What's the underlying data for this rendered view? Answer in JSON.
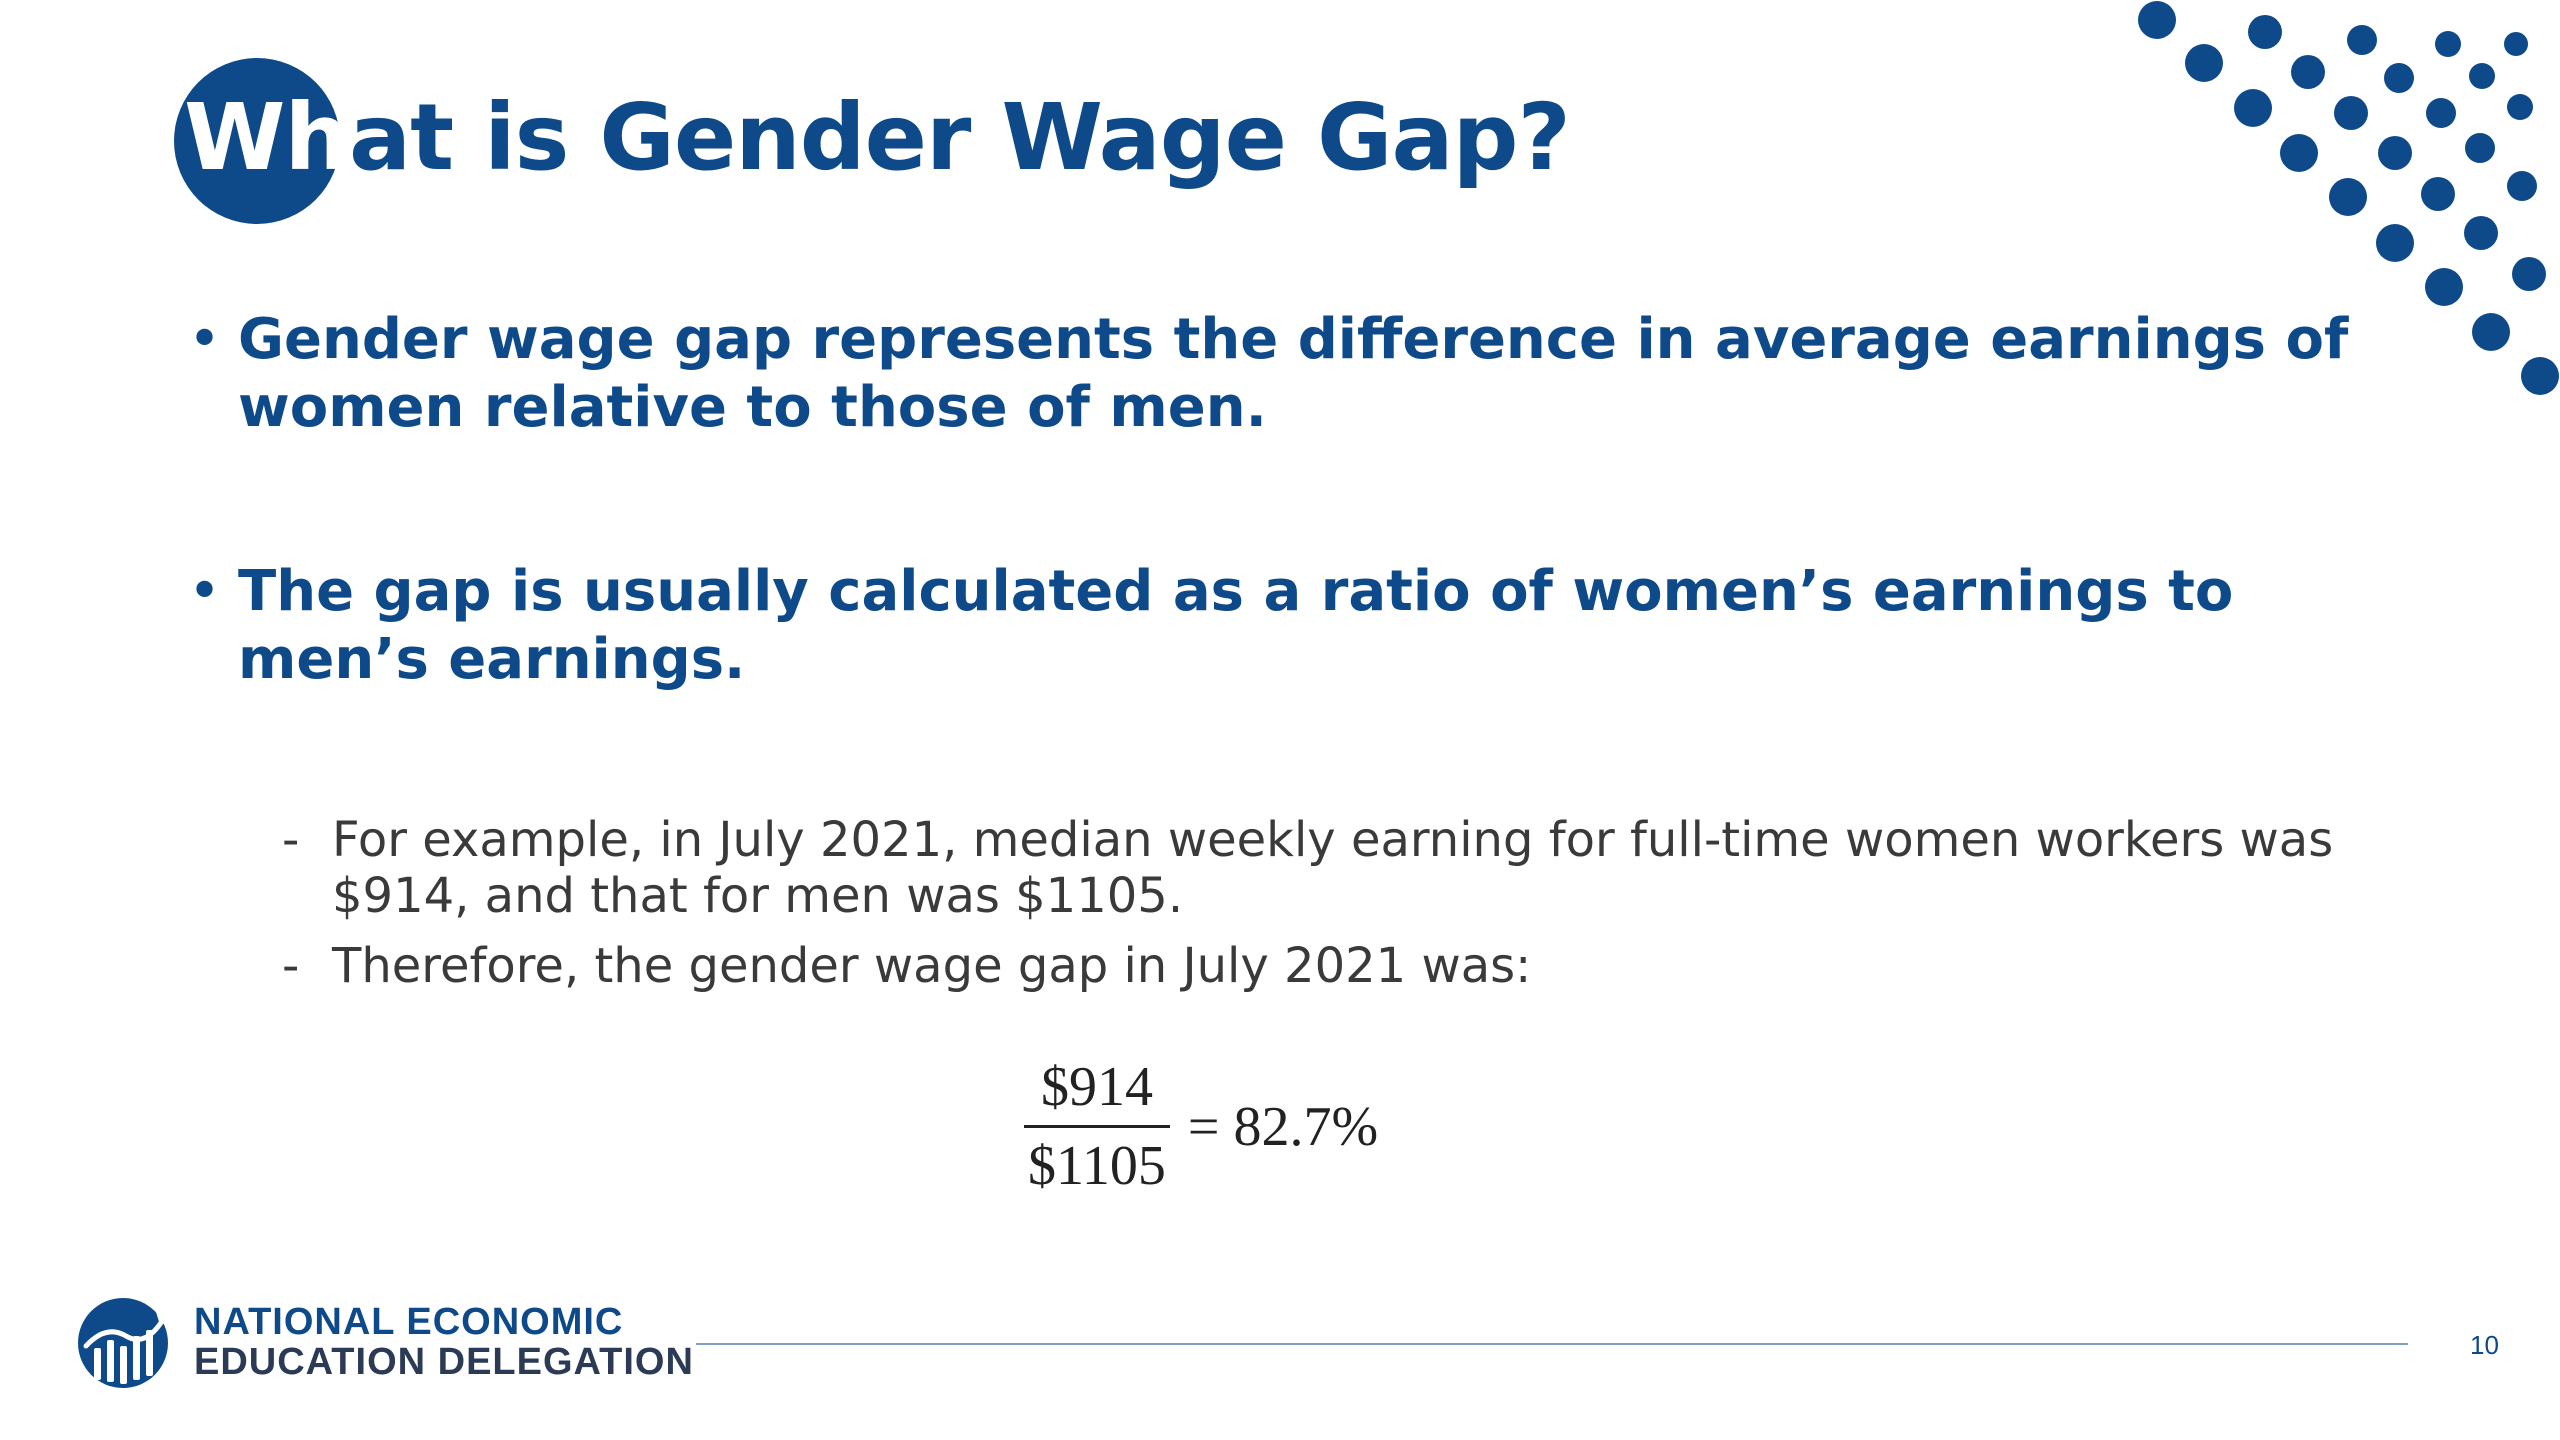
{
  "slide": {
    "title_part1": "Wh",
    "title_part2": "at is Gender Wage Gap?",
    "bullets": [
      "Gender wage gap represents the difference in average earnings of women relative to those of men.",
      "The gap is usually calculated as a ratio of women’s earnings to men’s earnings."
    ],
    "bullet_marker": "•",
    "sub_points": [
      "For example, in July 2021, median weekly earning for full-time women workers was $914, and that for men was $1105.",
      "Therefore, the gender wage gap in July 2021 was:"
    ],
    "sub_marker": "-",
    "formula": {
      "numerator": "$914",
      "denominator": "$1105",
      "result": "= 82.7%"
    }
  },
  "footer": {
    "org_line1": "NATIONAL ECONOMIC",
    "org_line2": "EDUCATION DELEGATION",
    "page_number": "10"
  },
  "colors": {
    "primary": "#0e4a8a",
    "body_text": "#3a3a3a",
    "rule": "#7da0c4"
  }
}
